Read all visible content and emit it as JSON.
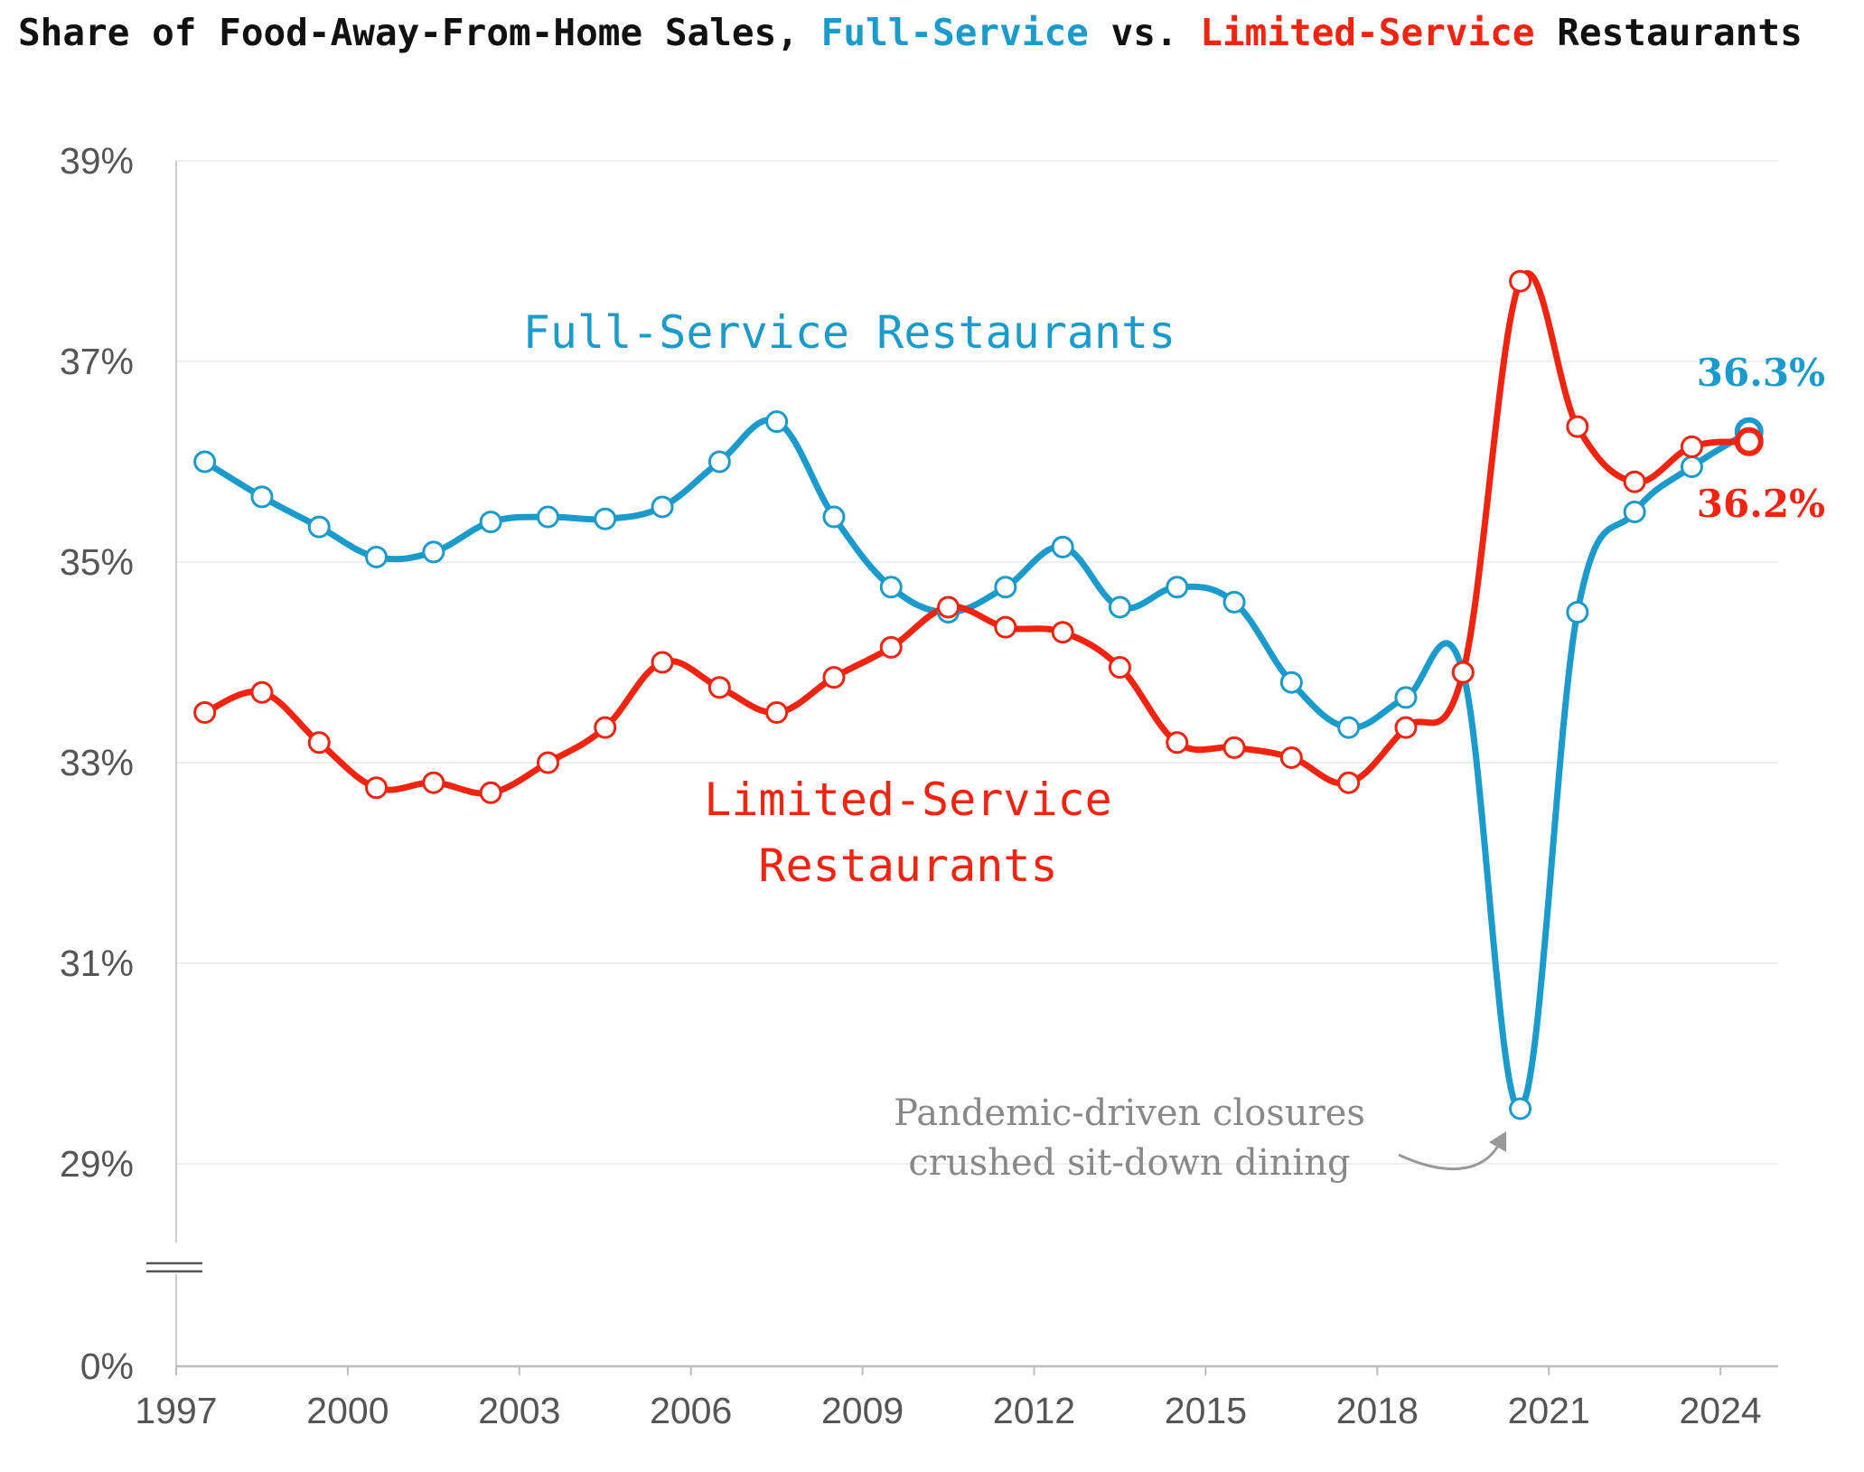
{
  "subtitle": {
    "prefix": "Share of Food-Away-From-Home Sales, ",
    "full": "Full-Service",
    "mid": " vs. ",
    "limited": "Limited-Service",
    "suffix": " Restaurants"
  },
  "colors": {
    "full": "#1a9bcb",
    "limited": "#f2230f",
    "text": "#111111",
    "axis": "#555555",
    "annotation": "#888888"
  },
  "chart_data": {
    "type": "line",
    "title": "Share of Food-Away-From-Home Sales, Full-Service vs. Limited-Service Restaurants",
    "xlabel": "",
    "ylabel": "",
    "axis_break": "between 0% and 29%",
    "y_ticks": [
      "0%",
      "29%",
      "31%",
      "33%",
      "35%",
      "37%",
      "39%"
    ],
    "x_ticks": [
      "1997",
      "2000",
      "2003",
      "2006",
      "2009",
      "2012",
      "2015",
      "2018",
      "2021",
      "2024"
    ],
    "x": [
      1997.5,
      1998.5,
      1999.5,
      2000.5,
      2001.5,
      2002.5,
      2003.5,
      2004.5,
      2005.5,
      2006.5,
      2007.5,
      2008.5,
      2009.5,
      2010.5,
      2011.5,
      2012.5,
      2013.5,
      2014.5,
      2015.5,
      2016.5,
      2017.5,
      2018.5,
      2019.5,
      2020.5,
      2021.5,
      2022.5,
      2023.5,
      2024.5
    ],
    "series": [
      {
        "name": "Full-Service Restaurants",
        "label_line1": "Full-Service Restaurants",
        "values": [
          36.0,
          35.65,
          35.35,
          35.05,
          35.1,
          35.4,
          35.45,
          35.43,
          35.55,
          36.0,
          36.4,
          35.45,
          34.75,
          34.5,
          34.75,
          35.15,
          34.55,
          34.75,
          34.6,
          33.8,
          33.35,
          33.65,
          33.9,
          29.55,
          34.5,
          35.5,
          35.95,
          36.3
        ],
        "end_label": "36.3%"
      },
      {
        "name": "Limited-Service Restaurants",
        "label_line1": "Limited-Service",
        "label_line2": "Restaurants",
        "values": [
          33.5,
          33.7,
          33.2,
          32.75,
          32.8,
          32.7,
          33.0,
          33.35,
          34.0,
          33.75,
          33.5,
          33.85,
          34.15,
          34.55,
          34.35,
          34.3,
          33.95,
          33.2,
          33.15,
          33.05,
          32.8,
          33.35,
          33.9,
          37.8,
          36.35,
          35.8,
          36.15,
          36.2
        ],
        "end_label": "36.2%"
      }
    ]
  },
  "annotation": {
    "line1": "Pandemic-driven closures",
    "line2": "crushed sit-down dining"
  }
}
